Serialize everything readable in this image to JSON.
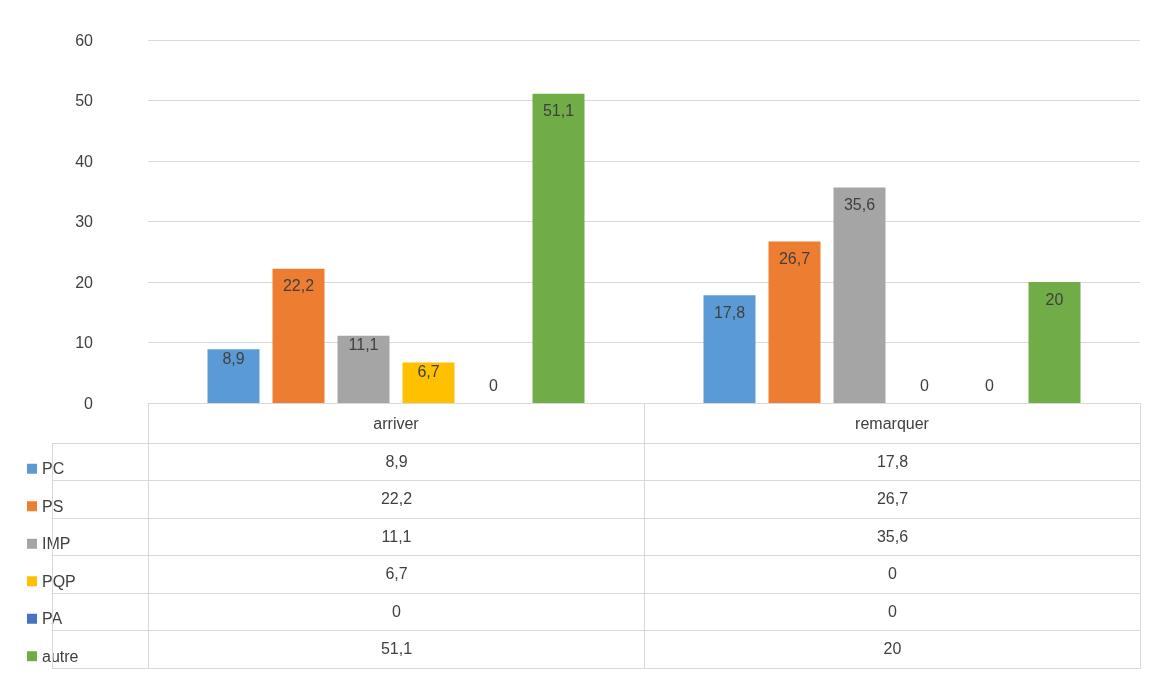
{
  "chart_data": {
    "type": "bar",
    "categories": [
      "arriver",
      "remarquer"
    ],
    "series": [
      {
        "name": "PC",
        "color": "#5b9bd5",
        "values": [
          8.9,
          17.8
        ],
        "value_labels": [
          "8,9",
          "17,8"
        ]
      },
      {
        "name": "PS",
        "color": "#ed7d31",
        "values": [
          22.2,
          26.7
        ],
        "value_labels": [
          "22,2",
          "26,7"
        ]
      },
      {
        "name": "IMP",
        "color": "#a5a5a5",
        "values": [
          11.1,
          35.6
        ],
        "value_labels": [
          "11,1",
          "35,6"
        ]
      },
      {
        "name": "PQP",
        "color": "#ffc000",
        "values": [
          6.7,
          0
        ],
        "value_labels": [
          "6,7",
          "0"
        ]
      },
      {
        "name": "PA",
        "color": "#4472c4",
        "values": [
          0,
          0
        ],
        "value_labels": [
          "0",
          "0"
        ]
      },
      {
        "name": "autre",
        "color": "#70ad47",
        "values": [
          51.1,
          20
        ],
        "value_labels": [
          "51,1",
          "20"
        ]
      }
    ],
    "ylim": [
      0,
      60
    ],
    "yticks": [
      0,
      10,
      20,
      30,
      40,
      50,
      60
    ],
    "grid": "y",
    "legend": "bottom left"
  }
}
